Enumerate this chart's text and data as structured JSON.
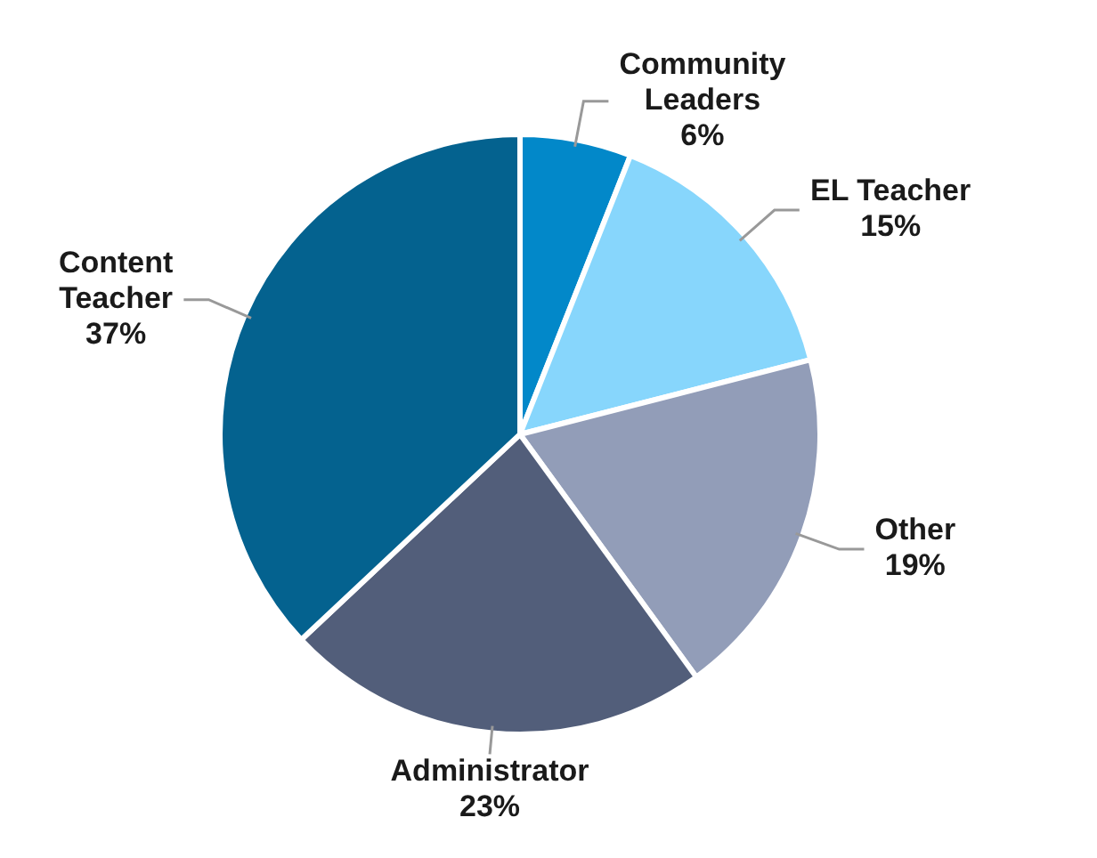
{
  "chart_data": {
    "type": "pie",
    "categories": [
      "Community Leaders",
      "EL Teacher",
      "Other",
      "Administrator",
      "Content Teacher"
    ],
    "values": [
      6,
      15,
      19,
      23,
      37
    ],
    "value_labels": [
      "6%",
      "15%",
      "19%",
      "23%",
      "37%"
    ],
    "colors": [
      "#0288c9",
      "#87d6fc",
      "#929db8",
      "#525e7a",
      "#04628f"
    ],
    "legend": false
  }
}
